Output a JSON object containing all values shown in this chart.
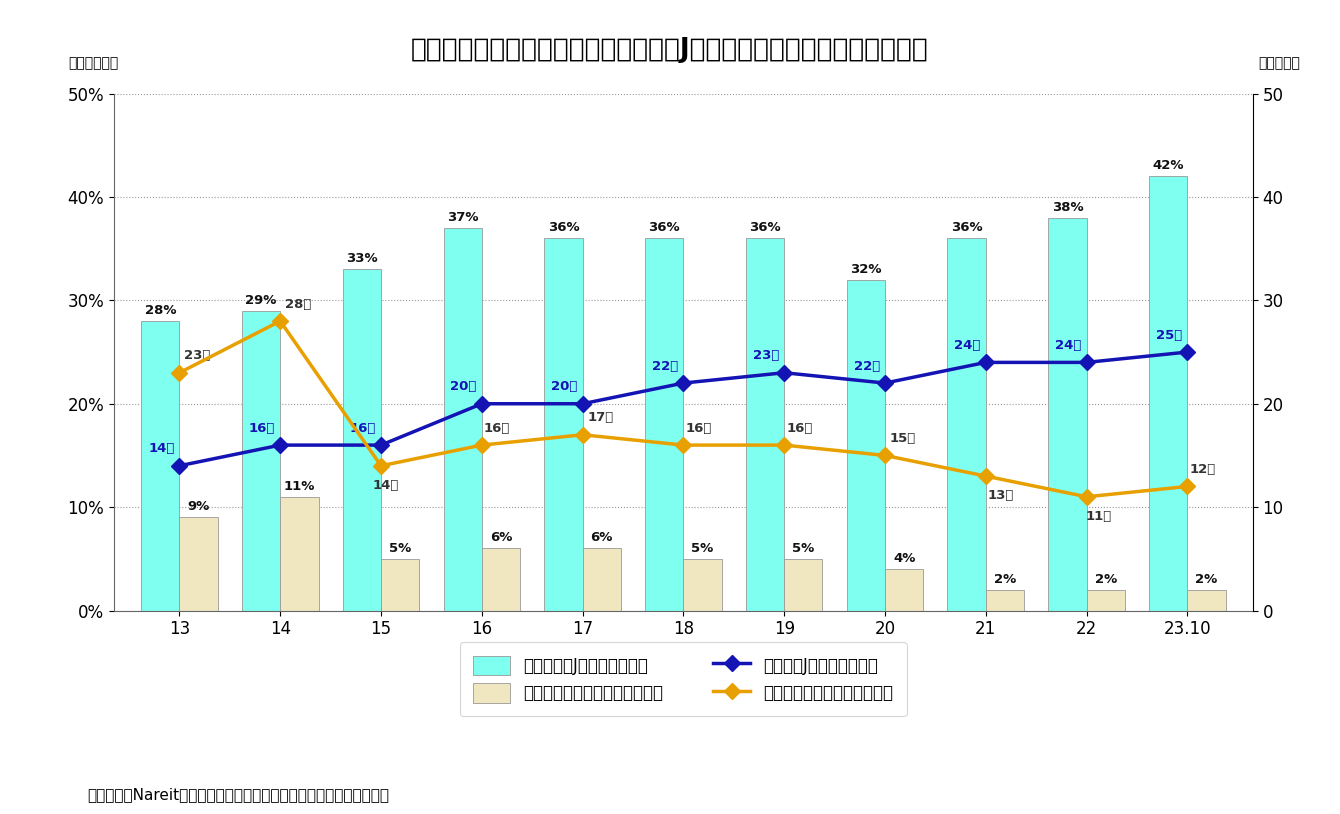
{
  "title": "図表３：総合型の時価占率と銘柄数（Jリート市場及び米国リート市場）",
  "subtitle_left": "（時価占率）",
  "subtitle_right": "（銘柄数）",
  "x_labels": [
    "13",
    "14",
    "15",
    "16",
    "17",
    "18",
    "19",
    "20",
    "21",
    "22",
    "23.10"
  ],
  "x_positions": [
    0,
    1,
    2,
    3,
    4,
    5,
    6,
    7,
    8,
    9,
    10
  ],
  "j_reit_bar_pct": [
    28,
    29,
    33,
    37,
    36,
    36,
    36,
    32,
    36,
    38,
    42
  ],
  "us_reit_bar_pct": [
    9,
    11,
    5,
    6,
    6,
    5,
    5,
    4,
    2,
    2,
    2
  ],
  "j_reit_count": [
    14,
    16,
    16,
    20,
    20,
    22,
    23,
    22,
    24,
    24,
    25
  ],
  "us_reit_count": [
    23,
    28,
    14,
    16,
    17,
    16,
    16,
    15,
    13,
    11,
    12
  ],
  "j_bar_color": "#7FFFF0",
  "us_bar_color": "#F0E6C0",
  "j_line_color": "#1414B4",
  "us_line_color": "#E8A000",
  "bar_width": 0.38,
  "ylim_left": [
    0,
    50
  ],
  "ylim_right": [
    0,
    50
  ],
  "yticks_left": [
    0,
    10,
    20,
    30,
    40,
    50
  ],
  "ytick_labels_left": [
    "0%",
    "10%",
    "20%",
    "30%",
    "40%",
    "50%"
  ],
  "yticks_right": [
    0,
    10,
    20,
    30,
    40,
    50
  ],
  "grid_color": "#999999",
  "background_color": "#FFFFFF",
  "legend_labels": [
    "時価占率（Jリート総合型）",
    "時価占率（米国リート総合型）",
    "銘柄数（Jリート総合型）",
    "銘柄数（米国リート総合型）"
  ],
  "footer": "（資料）　Nareitの開示資料などをもとにニッセイ基礎研究所が作成"
}
